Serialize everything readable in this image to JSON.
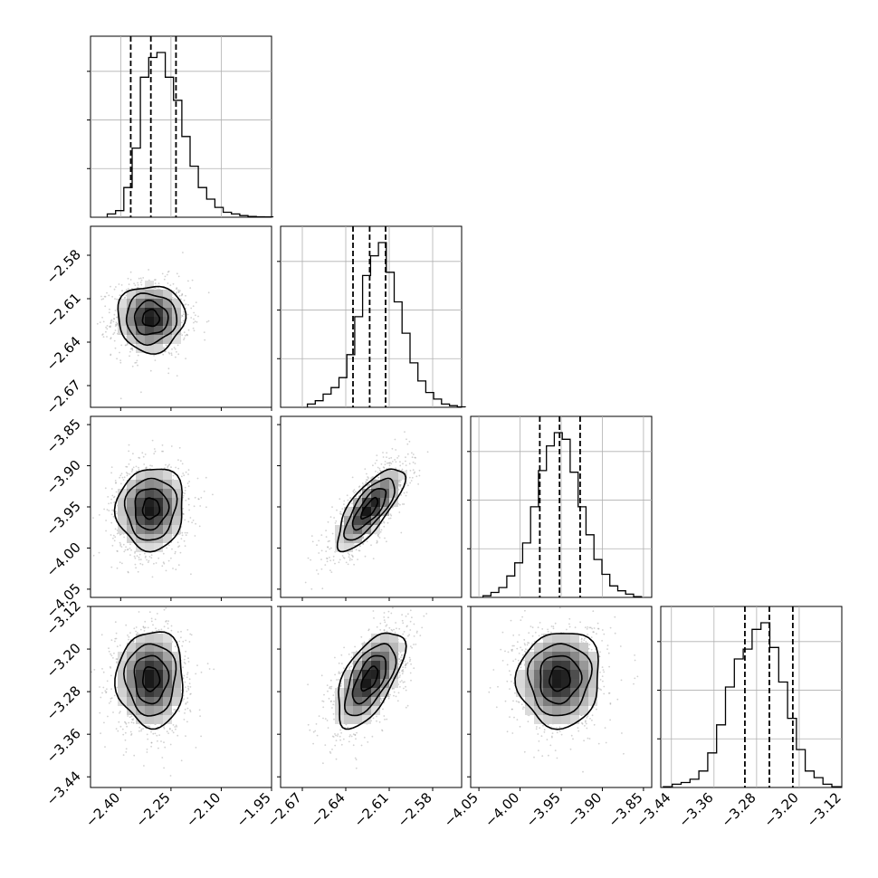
{
  "chart_data": {
    "type": "corner",
    "parameters": 4,
    "axes": [
      {
        "ticks": [
          "−2.40",
          "−2.25",
          "−2.10",
          "−1.95"
        ],
        "tick_values": [
          -2.4,
          -2.25,
          -2.1,
          -1.95
        ],
        "range": [
          -2.49,
          -1.95
        ]
      },
      {
        "ticks": [
          "−2.67",
          "−2.64",
          "−2.61",
          "−2.58"
        ],
        "tick_values": [
          -2.67,
          -2.64,
          -2.61,
          -2.58
        ],
        "range": [
          -2.685,
          -2.56
        ]
      },
      {
        "ticks": [
          "−4.05",
          "−4.00",
          "−3.95",
          "−3.90",
          "−3.85"
        ],
        "tick_values": [
          -4.05,
          -4.0,
          -3.95,
          -3.9,
          -3.85
        ],
        "range": [
          -4.06,
          -3.84
        ]
      },
      {
        "ticks": [
          "−3.44",
          "−3.36",
          "−3.28",
          "−3.20",
          "−3.12"
        ],
        "tick_values": [
          -3.44,
          -3.36,
          -3.28,
          -3.2,
          -3.12
        ],
        "range": [
          -3.46,
          -3.12
        ]
      }
    ],
    "marginals": [
      {
        "quantiles": [
          -2.37,
          -2.31,
          -2.235
        ],
        "max_count": 1.0,
        "edges_start": -2.44,
        "bin_width": 0.0247,
        "counts": [
          0.02,
          0.04,
          0.18,
          0.42,
          0.85,
          0.97,
          1.0,
          0.85,
          0.71,
          0.49,
          0.31,
          0.18,
          0.11,
          0.06,
          0.03,
          0.02,
          0.01,
          0.005,
          0.003,
          0.002
        ]
      },
      {
        "quantiles": [
          -2.635,
          -2.6235,
          -2.6125
        ],
        "max_count": 1.0,
        "edges_start": -2.6665,
        "bin_width": 0.00545,
        "counts": [
          0.02,
          0.04,
          0.08,
          0.12,
          0.18,
          0.32,
          0.55,
          0.8,
          0.92,
          1.0,
          0.82,
          0.64,
          0.45,
          0.27,
          0.16,
          0.09,
          0.05,
          0.02,
          0.01,
          0.003
        ]
      },
      {
        "quantiles": [
          -3.976,
          -3.952,
          -3.927
        ],
        "max_count": 1.0,
        "edges_start": -4.045,
        "bin_width": 0.00963,
        "counts": [
          0.01,
          0.03,
          0.06,
          0.13,
          0.21,
          0.33,
          0.55,
          0.77,
          0.92,
          1.0,
          0.96,
          0.76,
          0.55,
          0.38,
          0.23,
          0.14,
          0.07,
          0.04,
          0.02,
          0.005
        ]
      },
      {
        "quantiles": [
          -3.302,
          -3.256,
          -3.212
        ],
        "max_count": 1.0,
        "edges_start": -3.455,
        "bin_width": 0.01665,
        "counts": [
          0.005,
          0.02,
          0.03,
          0.05,
          0.1,
          0.21,
          0.38,
          0.61,
          0.78,
          0.84,
          0.96,
          1.0,
          0.85,
          0.64,
          0.42,
          0.23,
          0.1,
          0.06,
          0.02,
          0.005
        ]
      }
    ],
    "joint": [
      {
        "pair": [
          0,
          1
        ],
        "mean": [
          -2.31,
          -2.6235
        ],
        "sd": [
          0.05,
          0.0115
        ],
        "rho": 0.0
      },
      {
        "pair": [
          0,
          2
        ],
        "mean": [
          -2.31,
          -3.952
        ],
        "sd": [
          0.05,
          0.025
        ],
        "rho": 0.05
      },
      {
        "pair": [
          1,
          2
        ],
        "mean": [
          -2.6235,
          -3.952
        ],
        "sd": [
          0.0115,
          0.025
        ],
        "rho": 0.75
      },
      {
        "pair": [
          0,
          3
        ],
        "mean": [
          -2.31,
          -3.256
        ],
        "sd": [
          0.05,
          0.045
        ],
        "rho": 0.0
      },
      {
        "pair": [
          1,
          3
        ],
        "mean": [
          -2.6235,
          -3.256
        ],
        "sd": [
          0.0115,
          0.045
        ],
        "rho": 0.6
      },
      {
        "pair": [
          2,
          3
        ],
        "mean": [
          -3.952,
          -3.256
        ],
        "sd": [
          0.025,
          0.045
        ],
        "rho": 0.05
      }
    ],
    "contour_levels_sigma": [
      0.5,
      1.0,
      1.5,
      2.0
    ],
    "grid": true,
    "quantile_line_style": "dashed"
  }
}
